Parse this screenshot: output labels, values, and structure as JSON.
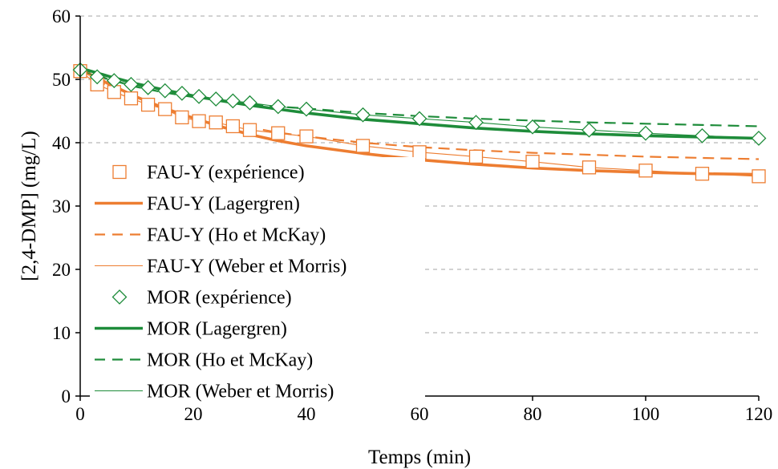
{
  "chart_data": {
    "type": "scatter",
    "title": "",
    "xlabel": "Temps (min)",
    "ylabel": "[2,4-DMP] (mg/L)",
    "xlim": [
      0,
      120
    ],
    "ylim": [
      0,
      60
    ],
    "x_ticks": [
      0,
      20,
      40,
      60,
      80,
      100,
      120
    ],
    "y_ticks": [
      0,
      10,
      20,
      30,
      40,
      50,
      60
    ],
    "grid": "horizontal dashed",
    "legend_position": "left",
    "colors": {
      "fau": "#ed7d31",
      "mor": "#1e8c3a"
    },
    "series": [
      {
        "name": "FAU-Y (expérience)",
        "kind": "markers",
        "marker": "square",
        "color": "#ed7d31",
        "x": [
          0,
          3,
          6,
          9,
          12,
          15,
          18,
          21,
          24,
          27,
          30,
          35,
          40,
          50,
          60,
          70,
          80,
          90,
          100,
          110,
          120
        ],
        "y": [
          51.3,
          49.2,
          48.0,
          47.0,
          46.0,
          45.3,
          44.0,
          43.4,
          43.2,
          42.6,
          42.0,
          41.5,
          41.0,
          39.5,
          38.5,
          37.8,
          37.0,
          36.1,
          35.6,
          35.1,
          34.7
        ]
      },
      {
        "name": "FAU-Y (Lagergren)",
        "kind": "line",
        "style": "solid-thick",
        "color": "#ed7d31",
        "x": [
          0,
          5,
          10,
          15,
          20,
          25,
          30,
          35,
          40,
          50,
          60,
          70,
          80,
          90,
          100,
          110,
          120
        ],
        "y": [
          51.6,
          49.3,
          47.2,
          45.4,
          43.9,
          42.5,
          41.3,
          40.3,
          39.5,
          38.3,
          37.3,
          36.6,
          36.0,
          35.6,
          35.3,
          35.1,
          35.0
        ]
      },
      {
        "name": "FAU-Y (Ho et McKay)",
        "kind": "line",
        "style": "dashed",
        "color": "#ed7d31",
        "x": [
          0,
          5,
          10,
          15,
          20,
          25,
          30,
          35,
          40,
          50,
          60,
          70,
          80,
          90,
          100,
          110,
          120
        ],
        "y": [
          51.6,
          48.8,
          47.0,
          45.5,
          44.3,
          43.3,
          42.4,
          41.6,
          41.0,
          40.0,
          39.3,
          38.8,
          38.4,
          38.1,
          37.8,
          37.6,
          37.4
        ]
      },
      {
        "name": "FAU-Y (Weber et Morris)",
        "kind": "line",
        "style": "solid-thin",
        "color": "#ed7d31",
        "x": [
          0,
          3,
          6,
          9,
          12,
          15,
          18,
          21,
          24,
          27,
          30,
          35,
          40,
          50,
          60,
          70,
          80,
          90,
          100,
          110,
          120
        ],
        "y": [
          51.3,
          49.2,
          48.0,
          47.0,
          46.0,
          45.3,
          44.0,
          43.4,
          43.2,
          42.6,
          42.0,
          41.5,
          41.0,
          39.5,
          38.5,
          37.8,
          37.0,
          36.1,
          35.6,
          35.1,
          34.7
        ]
      },
      {
        "name": "MOR (expérience)",
        "kind": "markers",
        "marker": "diamond",
        "color": "#1e8c3a",
        "x": [
          0,
          3,
          6,
          9,
          12,
          15,
          18,
          21,
          24,
          27,
          30,
          35,
          40,
          50,
          60,
          70,
          80,
          90,
          100,
          110,
          120
        ],
        "y": [
          51.5,
          50.4,
          49.8,
          49.2,
          48.7,
          48.2,
          47.8,
          47.3,
          46.9,
          46.6,
          46.3,
          45.7,
          45.3,
          44.4,
          43.8,
          43.2,
          42.5,
          42.0,
          41.5,
          41.1,
          40.7
        ]
      },
      {
        "name": "MOR (Lagergren)",
        "kind": "line",
        "style": "solid-thick",
        "color": "#1e8c3a",
        "x": [
          0,
          5,
          10,
          15,
          20,
          25,
          30,
          35,
          40,
          50,
          60,
          70,
          80,
          90,
          100,
          110,
          120
        ],
        "y": [
          51.8,
          50.5,
          49.3,
          48.3,
          47.4,
          46.6,
          45.9,
          45.3,
          44.7,
          43.7,
          43.0,
          42.3,
          41.8,
          41.4,
          41.1,
          40.9,
          40.7
        ]
      },
      {
        "name": "MOR (Ho et McKay)",
        "kind": "line",
        "style": "dashed",
        "color": "#1e8c3a",
        "x": [
          0,
          5,
          10,
          15,
          20,
          25,
          30,
          35,
          40,
          50,
          60,
          70,
          80,
          90,
          100,
          110,
          120
        ],
        "y": [
          51.8,
          50.0,
          48.8,
          47.9,
          47.2,
          46.6,
          46.1,
          45.7,
          45.4,
          44.7,
          44.2,
          43.8,
          43.5,
          43.2,
          43.0,
          42.8,
          42.6
        ]
      },
      {
        "name": "MOR (Weber et Morris)",
        "kind": "line",
        "style": "solid-thin",
        "color": "#1e8c3a",
        "x": [
          0,
          3,
          6,
          9,
          12,
          15,
          18,
          21,
          24,
          27,
          30,
          35,
          40,
          50,
          60,
          70,
          80,
          90,
          100,
          110,
          120
        ],
        "y": [
          51.5,
          50.4,
          49.8,
          49.2,
          48.7,
          48.2,
          47.8,
          47.3,
          46.9,
          46.6,
          46.3,
          45.7,
          45.3,
          44.4,
          43.8,
          43.2,
          42.5,
          42.0,
          41.5,
          41.1,
          40.7
        ]
      }
    ]
  }
}
